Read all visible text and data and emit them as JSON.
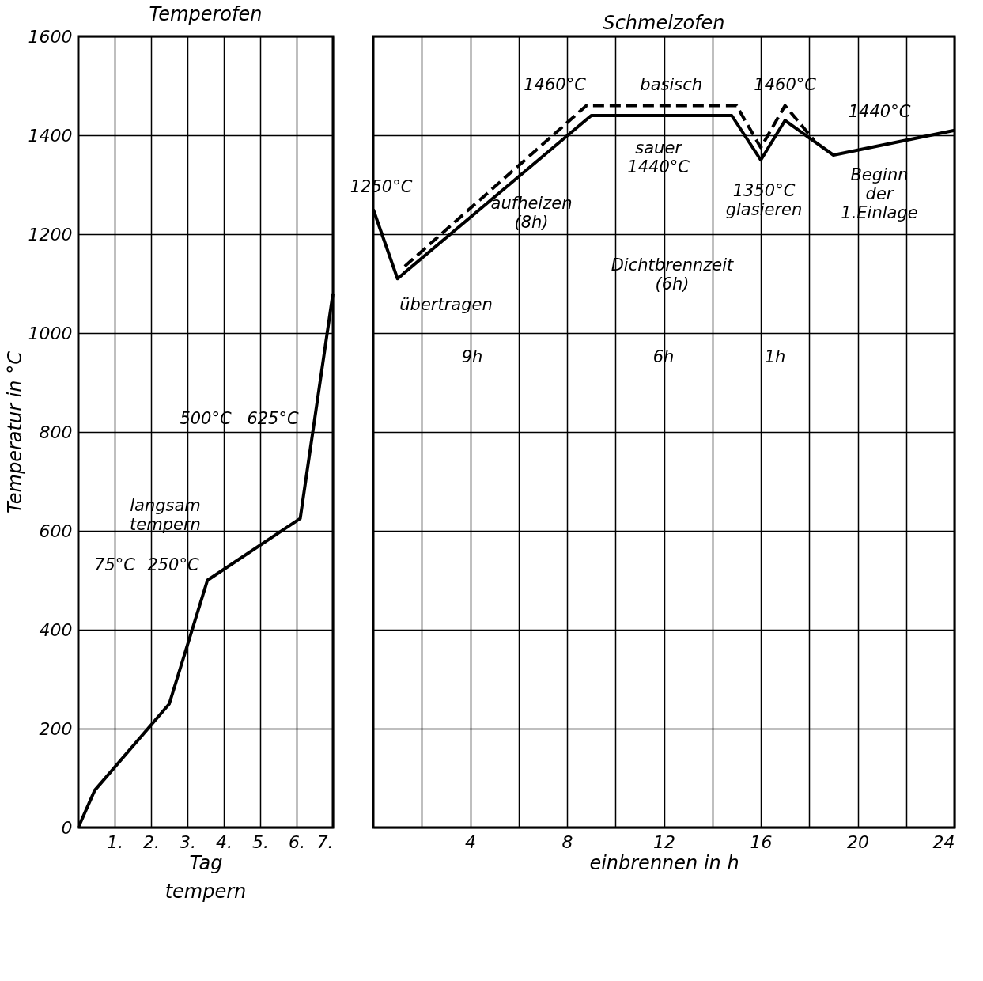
{
  "chart_data": [
    {
      "type": "line",
      "title": "Temperofen",
      "xlabel": "Tag",
      "ylabel": "Temperatur in °C",
      "x": [
        0,
        0.45,
        2.5,
        3.55,
        6.1,
        7
      ],
      "series": [
        {
          "color": "#000000",
          "line_style": "solid",
          "values": [
            0,
            75,
            250,
            500,
            625,
            1080
          ]
        }
      ],
      "xlim": [
        0,
        7
      ],
      "xticks": [
        {
          "value": 1,
          "label": "1."
        },
        {
          "value": 2,
          "label": "2."
        },
        {
          "value": 3,
          "label": "3."
        },
        {
          "value": 4,
          "label": "4."
        },
        {
          "value": 5,
          "label": "5."
        },
        {
          "value": 6,
          "label": "6."
        },
        {
          "value": 7,
          "label": "7."
        }
      ],
      "ylim": [
        0,
        1600
      ],
      "yticks": [
        0,
        200,
        400,
        600,
        800,
        1000,
        1200,
        1400,
        1600
      ],
      "grid": true,
      "annotations": [
        "langsam\ntempern",
        "75°C",
        "250°C",
        "500°C",
        "625°C",
        "tempern"
      ]
    },
    {
      "type": "line",
      "title": "Schmelzofen",
      "xlabel": "einbrennen in h",
      "series": [
        {
          "color": "#000000",
          "line_style": "solid",
          "x": [
            0,
            1,
            9,
            14.8,
            16,
            17,
            19,
            24
          ],
          "values": [
            1250,
            1110,
            1440,
            1440,
            1350,
            1430,
            1360,
            1410
          ]
        },
        {
          "color": "#000000",
          "line_style": "dashed",
          "x": [
            1.3,
            8.8,
            15,
            16,
            17,
            18.2
          ],
          "values": [
            1135,
            1460,
            1460,
            1375,
            1460,
            1390
          ]
        }
      ],
      "xlim": [
        0,
        24
      ],
      "xticks": [
        {
          "value": 2,
          "label": null
        },
        4,
        {
          "value": 6,
          "label": null
        },
        8,
        {
          "value": 10,
          "label": null
        },
        12,
        {
          "value": 14,
          "label": null
        },
        16,
        {
          "value": 18,
          "label": null
        },
        20,
        {
          "value": 22,
          "label": null
        },
        24
      ],
      "ylim": [
        0,
        1600
      ],
      "yticks": [
        0,
        200,
        400,
        600,
        800,
        1000,
        1200,
        1400,
        1600
      ],
      "grid": true,
      "tick_labels": "x",
      "annotations": [
        {
          "text": "1250°C",
          "x": 0,
          "y": 1250
        },
        "aufheizen\n(8h)",
        "übertragen",
        "9h",
        "6h",
        "1h",
        {
          "text": "1460°C",
          "x": 8.8,
          "y": 1460
        },
        {
          "text": "basisch",
          "x": 12.3,
          "y": 1460
        },
        {
          "text": "1460°C",
          "x": 17,
          "y": 1460
        },
        {
          "text": "sauer\n1440°C",
          "x": 9,
          "y": 1440
        },
        "1440°C",
        {
          "text": "1350°C\nglasieren",
          "x": 16,
          "y": 1350
        },
        "Beginn\nder\n1.Einlage",
        "Dichtbrennzeit\n(6h)"
      ]
    }
  ]
}
